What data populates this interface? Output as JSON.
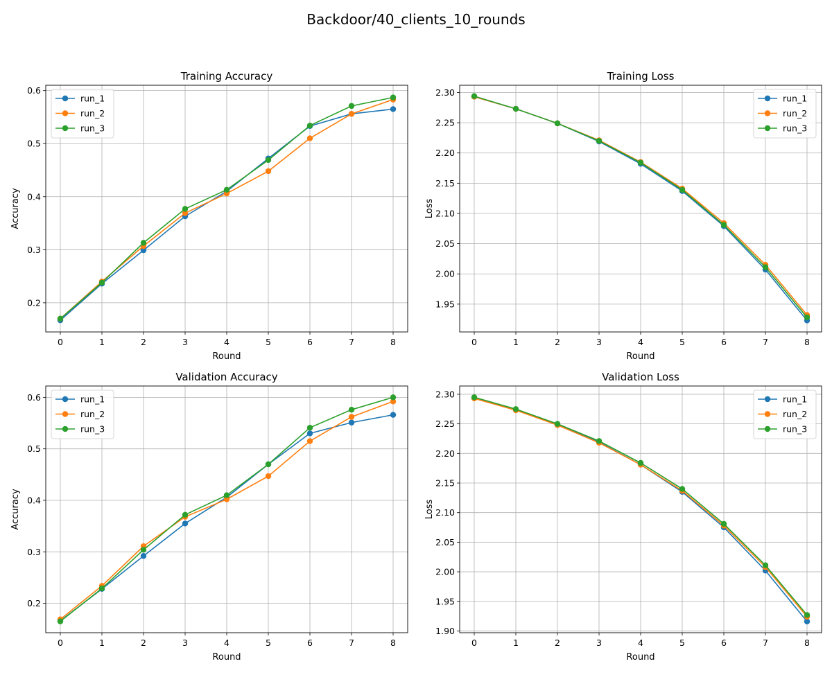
{
  "figure": {
    "suptitle": "Backdoor/40_clients_10_rounds"
  },
  "colors": {
    "run_1": "#1f77b4",
    "run_2": "#ff7f0e",
    "run_3": "#2ca02c"
  },
  "chart_data": [
    {
      "type": "line",
      "title": "Training Accuracy",
      "xlabel": "Round",
      "ylabel": "Accuracy",
      "x": [
        0,
        1,
        2,
        3,
        4,
        5,
        6,
        7,
        8
      ],
      "ylim": [
        0.145,
        0.61
      ],
      "yticks": [
        0.2,
        0.3,
        0.4,
        0.5,
        0.6
      ],
      "ytick_labels": [
        "0.2",
        "0.3",
        "0.4",
        "0.5",
        "0.6"
      ],
      "grid": true,
      "legend_position": "upper-left",
      "series": [
        {
          "name": "run_1",
          "values": [
            0.167,
            0.236,
            0.299,
            0.363,
            0.41,
            0.472,
            0.533,
            0.556,
            0.565
          ]
        },
        {
          "name": "run_2",
          "values": [
            0.17,
            0.24,
            0.307,
            0.369,
            0.406,
            0.448,
            0.51,
            0.556,
            0.583
          ]
        },
        {
          "name": "run_3",
          "values": [
            0.17,
            0.238,
            0.313,
            0.377,
            0.413,
            0.469,
            0.534,
            0.571,
            0.587
          ]
        }
      ]
    },
    {
      "type": "line",
      "title": "Training Loss",
      "xlabel": "Round",
      "ylabel": "Loss",
      "x": [
        0,
        1,
        2,
        3,
        4,
        5,
        6,
        7,
        8
      ],
      "ylim": [
        1.904,
        2.312
      ],
      "yticks": [
        1.95,
        2.0,
        2.05,
        2.1,
        2.15,
        2.2,
        2.25,
        2.3
      ],
      "ytick_labels": [
        "1.95",
        "2.00",
        "2.05",
        "2.10",
        "2.15",
        "2.20",
        "2.25",
        "2.30"
      ],
      "grid": true,
      "legend_position": "upper-right",
      "series": [
        {
          "name": "run_1",
          "values": [
            2.293,
            2.273,
            2.249,
            2.219,
            2.182,
            2.137,
            2.079,
            2.007,
            1.923
          ]
        },
        {
          "name": "run_2",
          "values": [
            2.293,
            2.273,
            2.249,
            2.221,
            2.185,
            2.141,
            2.084,
            2.015,
            1.932
          ]
        },
        {
          "name": "run_3",
          "values": [
            2.294,
            2.273,
            2.249,
            2.22,
            2.184,
            2.139,
            2.081,
            2.011,
            1.928
          ]
        }
      ]
    },
    {
      "type": "line",
      "title": "Validation Accuracy",
      "xlabel": "Round",
      "ylabel": "Accuracy",
      "x": [
        0,
        1,
        2,
        3,
        4,
        5,
        6,
        7,
        8
      ],
      "ylim": [
        0.143,
        0.622
      ],
      "yticks": [
        0.2,
        0.3,
        0.4,
        0.5,
        0.6
      ],
      "ytick_labels": [
        "0.2",
        "0.3",
        "0.4",
        "0.5",
        "0.6"
      ],
      "grid": true,
      "legend_position": "upper-left",
      "series": [
        {
          "name": "run_1",
          "values": [
            0.166,
            0.228,
            0.292,
            0.355,
            0.406,
            0.47,
            0.53,
            0.551,
            0.566
          ]
        },
        {
          "name": "run_2",
          "values": [
            0.169,
            0.234,
            0.311,
            0.368,
            0.402,
            0.447,
            0.515,
            0.562,
            0.592
          ]
        },
        {
          "name": "run_3",
          "values": [
            0.165,
            0.229,
            0.304,
            0.372,
            0.41,
            0.47,
            0.541,
            0.576,
            0.6
          ]
        }
      ]
    },
    {
      "type": "line",
      "title": "Validation Loss",
      "xlabel": "Round",
      "ylabel": "Loss",
      "x": [
        0,
        1,
        2,
        3,
        4,
        5,
        6,
        7,
        8
      ],
      "ylim": [
        1.897,
        2.314
      ],
      "yticks": [
        1.9,
        1.95,
        2.0,
        2.05,
        2.1,
        2.15,
        2.2,
        2.25,
        2.3
      ],
      "ytick_labels": [
        "1.90",
        "1.95",
        "2.00",
        "2.05",
        "2.10",
        "2.15",
        "2.20",
        "2.25",
        "2.30"
      ],
      "grid": true,
      "legend_position": "upper-right",
      "series": [
        {
          "name": "run_1",
          "values": [
            2.294,
            2.274,
            2.249,
            2.219,
            2.181,
            2.135,
            2.075,
            2.002,
            1.916
          ]
        },
        {
          "name": "run_2",
          "values": [
            2.293,
            2.273,
            2.248,
            2.218,
            2.181,
            2.137,
            2.078,
            2.008,
            1.924
          ]
        },
        {
          "name": "run_3",
          "values": [
            2.295,
            2.275,
            2.25,
            2.221,
            2.184,
            2.14,
            2.081,
            2.011,
            1.927
          ]
        }
      ]
    }
  ]
}
